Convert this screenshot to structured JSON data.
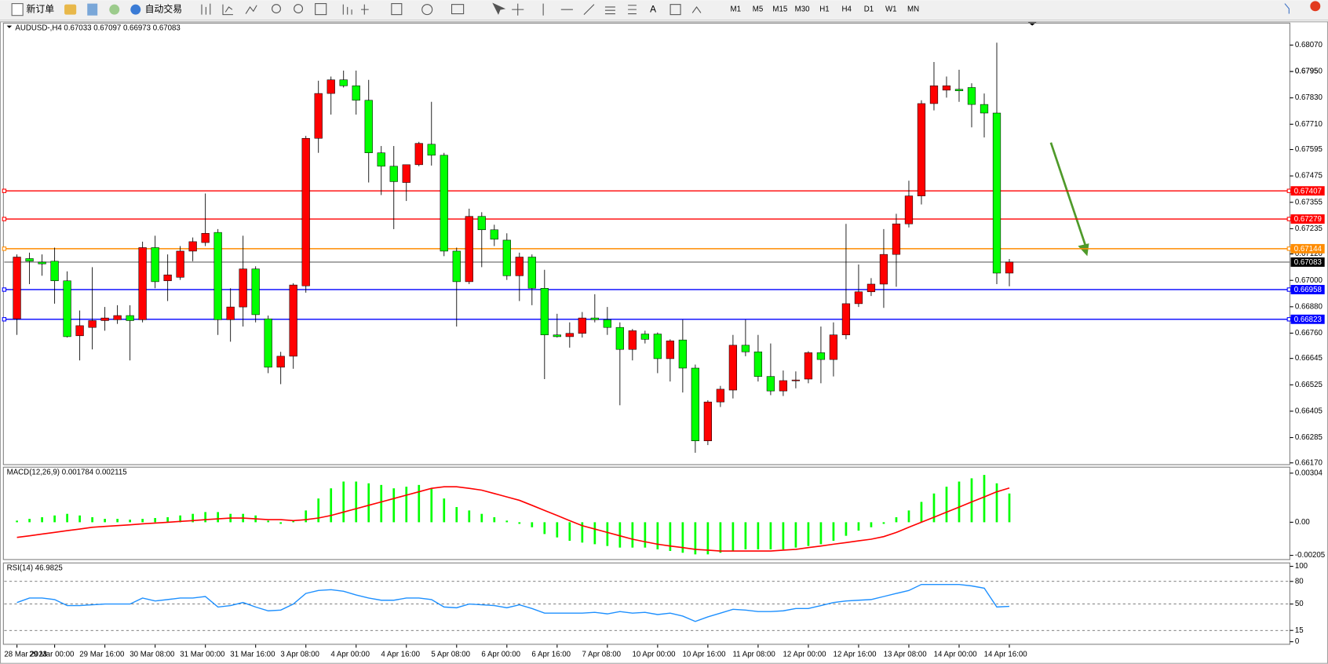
{
  "toolbar": {
    "new_order": "新订单",
    "auto_trading": "自动交易",
    "timeframes": [
      "M1",
      "M5",
      "M15",
      "M30",
      "H1",
      "H4",
      "D1",
      "W1",
      "MN"
    ]
  },
  "chart_data": [
    {
      "type": "candlestick",
      "title": "AUDUSD-,H4  0.67033 0.67097 0.66973 0.67083",
      "categories": [
        "28 Mar 2023",
        null,
        null,
        "29 Mar 00:00",
        null,
        null,
        null,
        "29 Mar 16:00",
        null,
        null,
        null,
        "30 Mar 08:00",
        null,
        null,
        null,
        "31 Mar 00:00",
        null,
        null,
        null,
        "31 Mar 16:00",
        null,
        null,
        null,
        "3 Apr 08:00",
        null,
        null,
        null,
        "4 Apr 00:00",
        null,
        null,
        null,
        "4 Apr 16:00",
        null,
        null,
        null,
        "5 Apr 08:00",
        null,
        null,
        null,
        "6 Apr 00:00",
        null,
        null,
        null,
        "6 Apr 16:00",
        null,
        null,
        null,
        "7 Apr 08:00",
        null,
        null,
        null,
        "10 Apr 00:00",
        null,
        null,
        null,
        "10 Apr 16:00",
        null,
        null,
        null,
        "11 Apr 08:00",
        null,
        null,
        null,
        "12 Apr 00:00",
        null,
        null,
        null,
        "12 Apr 16:00",
        null,
        null,
        null,
        "13 Apr 08:00",
        null,
        null,
        null,
        "14 Apr 00:00",
        null,
        null,
        null,
        "14 Apr 16:00"
      ],
      "open": [
        0.66825,
        0.67099,
        0.67083,
        0.67087,
        0.66998,
        0.66748,
        0.66786,
        0.66817,
        0.66821,
        0.6684,
        0.66821,
        0.67149,
        0.66998,
        0.67014,
        0.67133,
        0.67172,
        0.67218,
        0.66821,
        0.66879,
        0.67052,
        0.66825,
        0.66605,
        0.66655,
        0.66975,
        0.67646,
        0.6785,
        0.67912,
        0.67885,
        0.67819,
        0.6758,
        0.67519,
        0.67445,
        0.67526,
        0.67619,
        0.67569,
        0.67133,
        0.66994,
        0.67291,
        0.6723,
        0.67183,
        0.67021,
        0.67106,
        0.66964,
        0.66752,
        0.66744,
        0.66759,
        0.66829,
        0.66821,
        0.66786,
        0.66686,
        0.66756,
        0.66756,
        0.66644,
        0.66729,
        0.66601,
        0.6627,
        0.66447,
        0.66501,
        0.66705,
        0.66675,
        0.66563,
        0.66497,
        0.66544,
        0.66551,
        0.66671,
        0.6664,
        0.66752,
        0.66894,
        0.66948,
        0.66983,
        0.67118,
        0.67257,
        0.67384,
        0.67804,
        0.67865,
        0.67869,
        0.67877,
        0.678,
        0.67761,
        0.67033
      ],
      "high": [
        0.67118,
        0.67126,
        0.67118,
        0.67149,
        0.67041,
        0.66863,
        0.6706,
        0.66879,
        0.66887,
        0.66887,
        0.67176,
        0.67203,
        0.67118,
        0.67156,
        0.67195,
        0.67395,
        0.67233,
        0.66964,
        0.67203,
        0.67064,
        0.6684,
        0.66675,
        0.66987,
        0.67657,
        0.67908,
        0.67927,
        0.67954,
        0.67954,
        0.67912,
        0.67611,
        0.67611,
        0.67526,
        0.6763,
        0.67812,
        0.6758,
        0.67149,
        0.67326,
        0.6731,
        0.67253,
        0.67214,
        0.67126,
        0.67118,
        0.67048,
        0.66848,
        0.66809,
        0.66856,
        0.66937,
        0.66879,
        0.66809,
        0.66779,
        0.66771,
        0.66763,
        0.66732,
        0.66821,
        0.66617,
        0.66455,
        0.6652,
        0.66752,
        0.66821,
        0.66752,
        0.66713,
        0.6659,
        0.66586,
        0.66678,
        0.6679,
        0.66809,
        0.67257,
        0.67072,
        0.6701,
        0.67233,
        0.67303,
        0.67453,
        0.67819,
        0.67993,
        0.67927,
        0.67958,
        0.67896,
        0.6785,
        0.68081,
        0.67097
      ],
      "low": [
        0.66752,
        0.66983,
        0.67021,
        0.66894,
        0.6674,
        0.66636,
        0.66686,
        0.66771,
        0.66802,
        0.66636,
        0.66809,
        0.66964,
        0.66906,
        0.67002,
        0.67087,
        0.67156,
        0.66752,
        0.66721,
        0.6679,
        0.66809,
        0.66578,
        0.66528,
        0.66598,
        0.66944,
        0.6758,
        0.67754,
        0.67877,
        0.67754,
        0.67445,
        0.67388,
        0.67233,
        0.67361,
        0.67519,
        0.67522,
        0.6711,
        0.6679,
        0.66983,
        0.6706,
        0.67156,
        0.67002,
        0.66906,
        0.66887,
        0.66551,
        0.6674,
        0.66694,
        0.6674,
        0.66809,
        0.66752,
        0.66432,
        0.66636,
        0.66713,
        0.66578,
        0.6654,
        0.6649,
        0.66216,
        0.66251,
        0.66424,
        0.66463,
        0.66655,
        0.6654,
        0.66478,
        0.66474,
        0.66509,
        0.66532,
        0.66532,
        0.66563,
        0.66732,
        0.66879,
        0.66929,
        0.66875,
        0.66971,
        0.67241,
        0.67345,
        0.67773,
        0.67831,
        0.67812,
        0.67696,
        0.6765,
        0.66983,
        0.66973
      ],
      "close": [
        0.67106,
        0.67087,
        0.67075,
        0.66998,
        0.66744,
        0.66794,
        0.66817,
        0.66829,
        0.6684,
        0.66817,
        0.67149,
        0.66994,
        0.67025,
        0.67133,
        0.67176,
        0.67214,
        0.66821,
        0.66879,
        0.67052,
        0.66844,
        0.66605,
        0.66655,
        0.66979,
        0.67646,
        0.6785,
        0.67912,
        0.67885,
        0.67819,
        0.6758,
        0.67519,
        0.67449,
        0.67526,
        0.67623,
        0.67569,
        0.67133,
        0.66994,
        0.67291,
        0.6723,
        0.67187,
        0.67021,
        0.67106,
        0.66964,
        0.66752,
        0.66744,
        0.66759,
        0.66829,
        0.66821,
        0.66786,
        0.66686,
        0.66771,
        0.66732,
        0.66644,
        0.66725,
        0.66601,
        0.6627,
        0.66447,
        0.66505,
        0.66705,
        0.66675,
        0.66563,
        0.66497,
        0.66544,
        0.66547,
        0.66671,
        0.6664,
        0.66752,
        0.66894,
        0.66948,
        0.66983,
        0.67118,
        0.67257,
        0.67384,
        0.67804,
        0.67885,
        0.67885,
        0.67862,
        0.678,
        0.67761,
        0.67033,
        0.67083
      ],
      "up_color": "#ff0000",
      "down_color": "#00ff00",
      "ylim": [
        0.66162,
        0.6817
      ],
      "yticks": [
        {
          "value": 0.6807,
          "label": "0.68070"
        },
        0.6795,
        {
          "value": 0.6795,
          "label": "0.67950"
        },
        {
          "value": 0.6783,
          "label": "0.67830"
        },
        {
          "value": 0.6771,
          "label": "0.67710"
        },
        0.67595,
        0.67475,
        0.67355,
        0.67235,
        {
          "value": 0.6712,
          "label": "0.67120"
        },
        {
          "value": 0.67,
          "label": "0.67000"
        },
        {
          "value": 0.6688,
          "label": "0.66880"
        },
        {
          "value": 0.6676,
          "label": "0.66760"
        },
        0.66645,
        0.66525,
        0.66405,
        0.66285,
        {
          "value": 0.6617,
          "label": "0.66170"
        }
      ],
      "price_lines": [
        {
          "value": 0.67407,
          "color": "#ff0000"
        },
        {
          "value": 0.67279,
          "color": "#ff0000"
        },
        {
          "value": 0.67144,
          "color": "#ff8c00"
        },
        {
          "value": 0.67083,
          "color": "#000000"
        },
        {
          "value": 0.66958,
          "color": "#0000ff"
        },
        {
          "value": 0.66823,
          "color": "#0000ff"
        }
      ]
    },
    {
      "type": "macd",
      "title": "MACD(12,26,9) 0.001784 0.002115",
      "histogram": {
        "color": "#00ff00",
        "values": [
          0.0001,
          0.00021,
          0.00031,
          0.00042,
          0.00052,
          0.00042,
          0.00031,
          0.00021,
          0.00021,
          0.00016,
          0.00021,
          0.00026,
          0.00031,
          0.00042,
          0.00052,
          0.00063,
          0.00063,
          0.00052,
          0.00052,
          0.00042,
          0.0001,
          -0.0001,
          0.0001,
          0.00073,
          0.00147,
          0.0021,
          0.00252,
          0.00252,
          0.00241,
          0.00231,
          0.0021,
          0.0022,
          0.00231,
          0.0021,
          0.00147,
          0.00094,
          0.00073,
          0.00052,
          0.00031,
          0.0001,
          -0.0001,
          -0.00031,
          -0.00073,
          -0.00094,
          -0.00115,
          -0.00126,
          -0.00136,
          -0.00147,
          -0.00157,
          -0.00157,
          -0.00157,
          -0.00168,
          -0.00178,
          -0.00189,
          -0.00199,
          -0.00199,
          -0.00189,
          -0.00178,
          -0.00168,
          -0.00168,
          -0.00168,
          -0.00168,
          -0.00157,
          -0.00147,
          -0.00136,
          -0.00115,
          -0.00084,
          -0.00052,
          -0.00031,
          -0.0001,
          0.00031,
          0.00073,
          0.00126,
          0.00178,
          0.0022,
          0.00252,
          0.00272,
          0.00293,
          0.00241,
          0.00178
        ]
      },
      "signal": {
        "color": "#ff0000",
        "values": [
          -0.00094,
          -0.00084,
          -0.00073,
          -0.00063,
          -0.00052,
          -0.00042,
          -0.00031,
          -0.00026,
          -0.00021,
          -0.00016,
          -0.0001,
          -5e-05,
          0,
          5e-05,
          0.0001,
          0.00016,
          0.00021,
          0.00026,
          0.00026,
          0.00021,
          0.00016,
          0.00016,
          0.0001,
          0.00016,
          0.00026,
          0.00042,
          0.00063,
          0.00084,
          0.00105,
          0.00126,
          0.00147,
          0.00168,
          0.00189,
          0.0021,
          0.0022,
          0.0022,
          0.0021,
          0.00199,
          0.00178,
          0.00157,
          0.00136,
          0.00105,
          0.00073,
          0.00042,
          0.0001,
          -0.00021,
          -0.00042,
          -0.00063,
          -0.00084,
          -0.00105,
          -0.00121,
          -0.00136,
          -0.00147,
          -0.00157,
          -0.00168,
          -0.00173,
          -0.00178,
          -0.00178,
          -0.00178,
          -0.00178,
          -0.00178,
          -0.00173,
          -0.00168,
          -0.00157,
          -0.00147,
          -0.00136,
          -0.00126,
          -0.00115,
          -0.00105,
          -0.00089,
          -0.00063,
          -0.00031,
          0,
          0.00031,
          0.00063,
          0.00094,
          0.00126,
          0.00157,
          0.00189,
          0.00212
        ]
      },
      "ylim": [
        -0.00231,
        0.00341
      ],
      "yticks": [
        0.00304,
        {
          "value": 0,
          "label": "0.00"
        },
        -0.00205
      ]
    },
    {
      "type": "line",
      "title": "RSI(14) 46.9825",
      "color": "#1e90ff",
      "values": [
        52,
        58,
        58,
        56,
        48,
        48,
        49,
        50,
        50,
        50,
        58,
        54,
        56,
        58,
        58,
        60,
        46,
        48,
        52,
        46,
        41,
        42,
        50,
        64,
        68,
        69,
        67,
        62,
        58,
        55,
        55,
        58,
        58,
        56,
        46,
        45,
        50,
        49,
        48,
        45,
        49,
        44,
        38,
        38,
        38,
        38,
        39,
        37,
        40,
        38,
        39,
        36,
        38,
        34,
        27,
        33,
        38,
        43,
        42,
        40,
        40,
        41,
        44,
        44,
        48,
        52,
        54,
        55,
        56,
        60,
        64,
        68,
        76,
        76,
        76,
        76,
        74,
        71,
        46,
        47
      ],
      "ylim": [
        -3.4,
        104.5
      ],
      "yticks": [
        100,
        80,
        50,
        15,
        0
      ],
      "levels": [
        80,
        50,
        15
      ]
    }
  ]
}
